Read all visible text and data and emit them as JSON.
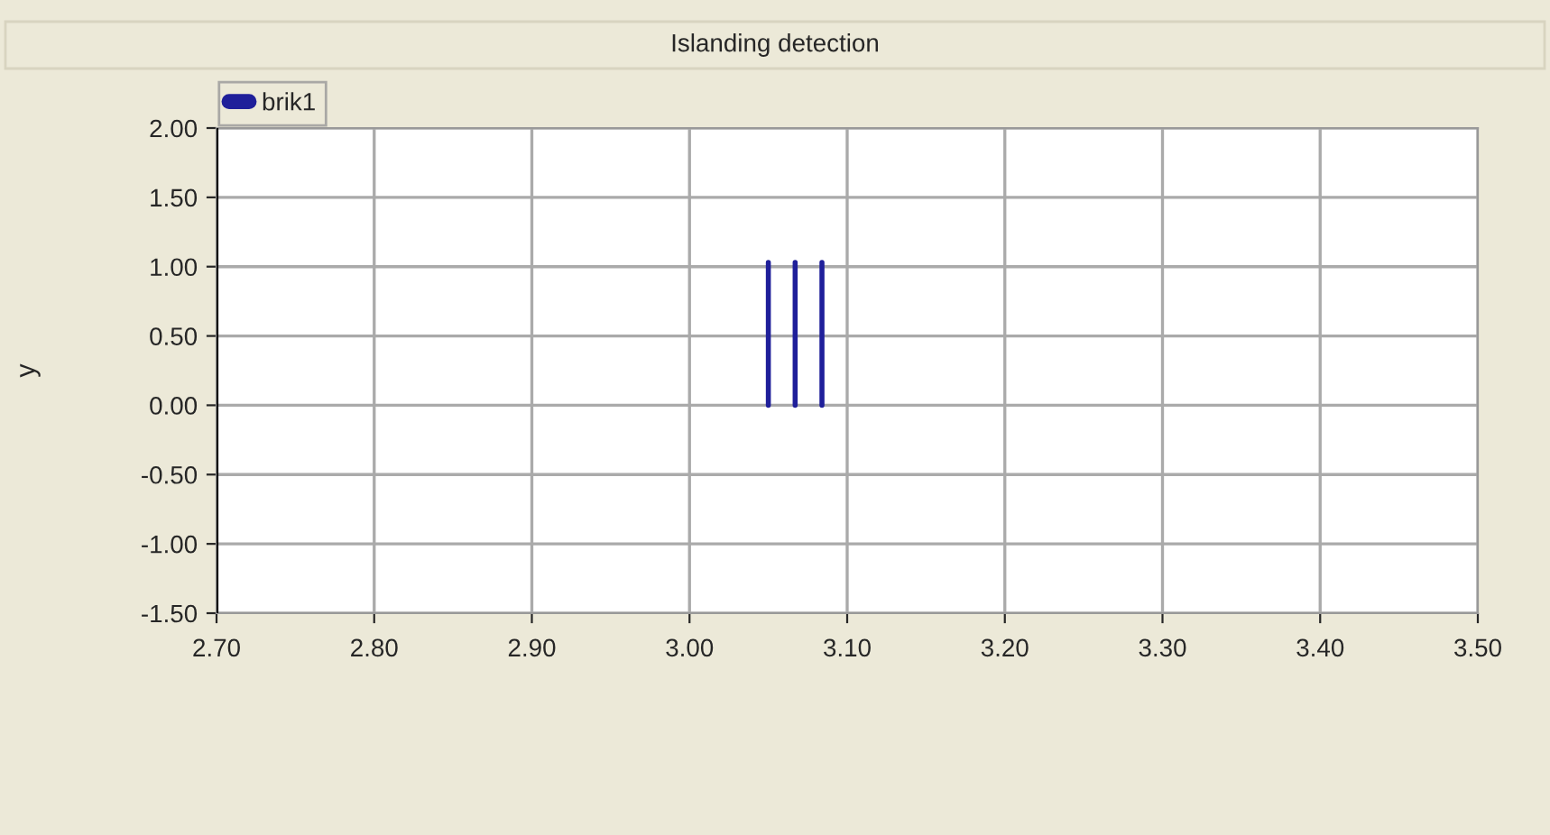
{
  "chart_data": {
    "type": "line",
    "title": "Islanding detection",
    "ylabel": "y",
    "series": [
      {
        "name": "brik1",
        "color": "#1f1f9a",
        "x": [
          3.05,
          3.05,
          3.058,
          3.067,
          3.067,
          3.075,
          3.084,
          3.084
        ],
        "values": [
          0,
          1.03,
          null,
          0,
          1.03,
          null,
          0,
          1.03
        ]
      }
    ],
    "xlim": [
      2.7,
      3.5
    ],
    "ylim": [
      -1.5,
      2.0
    ],
    "xticks": [
      {
        "value": 2.7,
        "label": "2.70"
      },
      {
        "value": 2.8,
        "label": "2.80"
      },
      {
        "value": 2.9,
        "label": "2.90"
      },
      {
        "value": 3.0,
        "label": "3.00"
      },
      {
        "value": 3.1,
        "label": "3.10"
      },
      {
        "value": 3.2,
        "label": "3.20"
      },
      {
        "value": 3.3,
        "label": "3.30"
      },
      {
        "value": 3.4,
        "label": "3.40"
      },
      {
        "value": 3.5,
        "label": "3.50"
      }
    ],
    "yticks": [
      {
        "value": -1.5,
        "label": "-1.50"
      },
      {
        "value": -1.0,
        "label": "-1.00"
      },
      {
        "value": -0.5,
        "label": "-0.50"
      },
      {
        "value": 0.0,
        "label": "0.00"
      },
      {
        "value": 0.5,
        "label": "0.50"
      },
      {
        "value": 1.0,
        "label": "1.00"
      },
      {
        "value": 1.5,
        "label": "1.50"
      },
      {
        "value": 2.0,
        "label": "2.00"
      }
    ],
    "ref_lines": [
      {
        "axis": "x",
        "value": 2.7,
        "color": "#000000"
      }
    ],
    "grid": true,
    "legend": "top left",
    "marker": "none",
    "line_style": "solid"
  }
}
